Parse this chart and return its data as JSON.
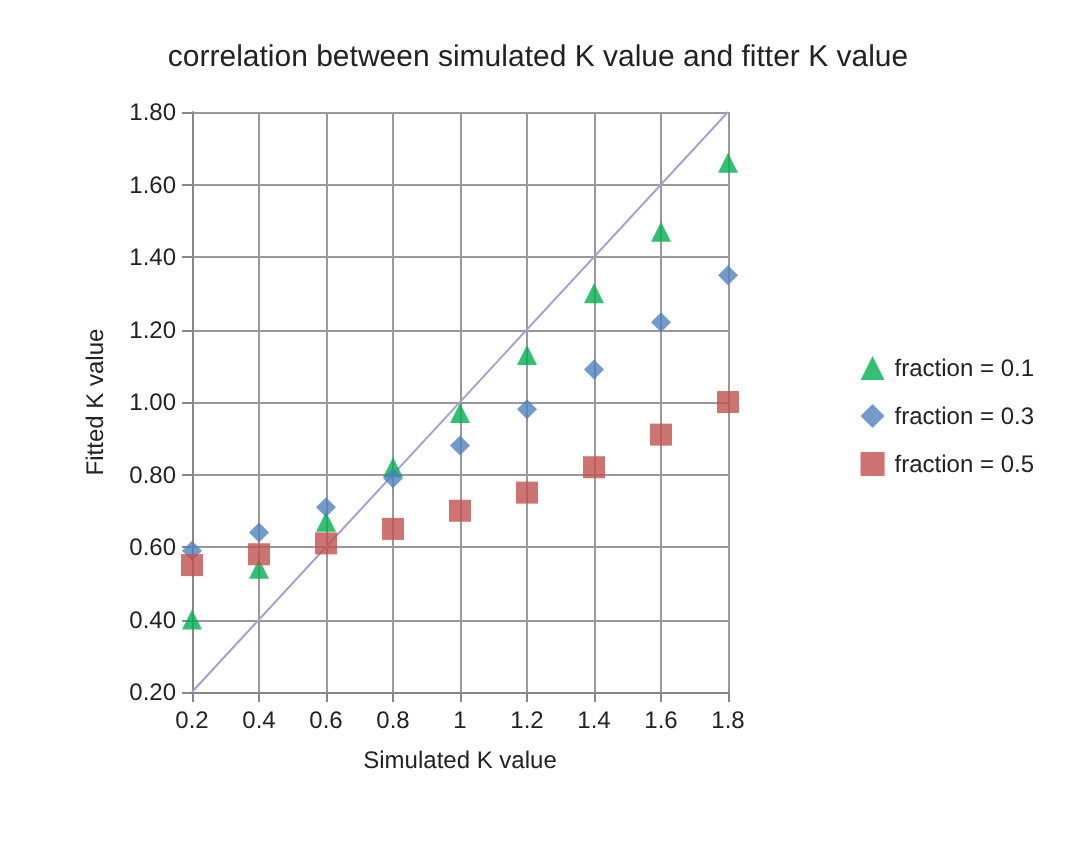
{
  "chart_data": {
    "type": "scatter",
    "title": "correlation between simulated K value and fitter K value",
    "xlabel": "Simulated K value",
    "ylabel": "Fitted K value",
    "x": [
      0.2,
      0.4,
      0.6,
      0.8,
      1,
      1.2,
      1.4,
      1.6,
      1.8
    ],
    "series": [
      {
        "name": "fraction = 0.1",
        "color": "#00b050",
        "marker": "triangle",
        "values": [
          0.4,
          0.54,
          0.67,
          0.82,
          0.97,
          1.13,
          1.3,
          1.47,
          1.66
        ]
      },
      {
        "name": "fraction = 0.3",
        "color": "#4f81bd",
        "marker": "diamond",
        "values": [
          0.59,
          0.64,
          0.71,
          0.79,
          0.88,
          0.98,
          1.09,
          1.22,
          1.35
        ]
      },
      {
        "name": "fraction = 0.5",
        "color": "#c0504d",
        "marker": "square",
        "values": [
          0.55,
          0.58,
          0.61,
          0.65,
          0.7,
          0.75,
          0.82,
          0.91,
          1.0
        ]
      },
      {
        "type": "line",
        "color": "#a99bd0",
        "marker": "none",
        "x": [
          0.2,
          1.8
        ],
        "values": [
          0.2,
          1.8
        ]
      }
    ],
    "xlim": [
      0.2,
      1.8
    ],
    "xticks": [
      0.2,
      0.4,
      0.6,
      0.8,
      1,
      1.2,
      1.4,
      1.6,
      1.8
    ],
    "ylim": [
      0.2,
      1.8
    ],
    "yticks": [
      {
        "value": 0.2,
        "label": "0.20"
      },
      {
        "value": 0.4,
        "label": "0.40"
      },
      {
        "value": 0.6,
        "label": "0.60"
      },
      {
        "value": 0.8,
        "label": "0.80"
      },
      {
        "value": 1,
        "label": "1.00"
      },
      {
        "value": 1.2,
        "label": "1.20"
      },
      {
        "value": 1.4,
        "label": "1.40"
      },
      {
        "value": 1.6,
        "label": "1.60"
      },
      {
        "value": 1.8,
        "label": "1.80"
      }
    ],
    "grid": true,
    "legend": "right"
  }
}
